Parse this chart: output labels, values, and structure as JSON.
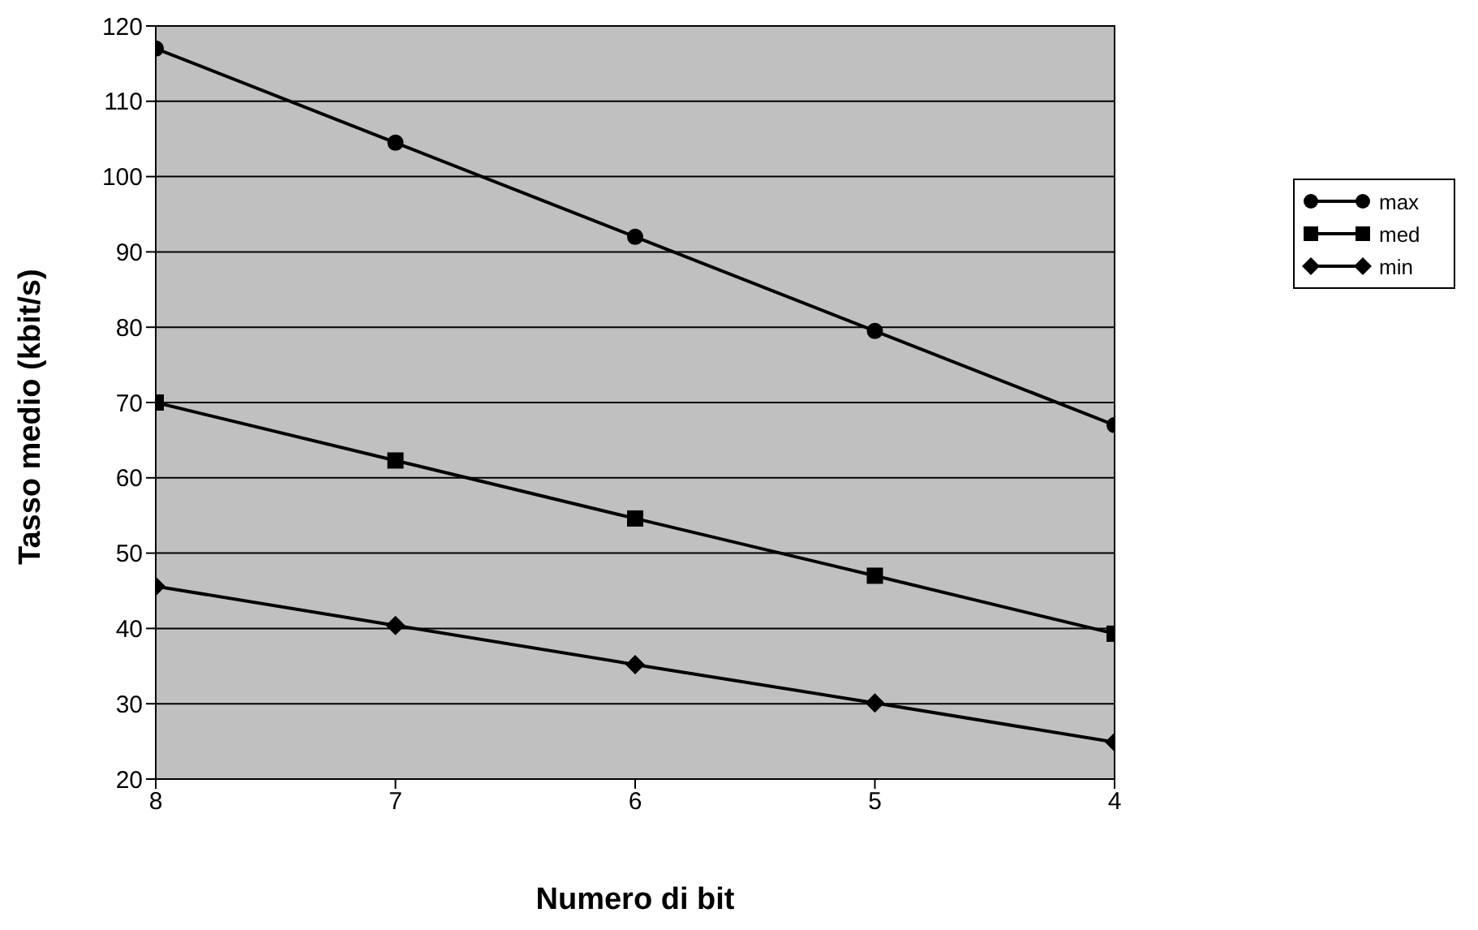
{
  "chart_data": {
    "type": "line",
    "xlabel": "Numero di bit",
    "ylabel": "Tasso medio (kbit/s)",
    "x": [
      8,
      7,
      6,
      5,
      4
    ],
    "series": [
      {
        "name": "max",
        "color": "#000000",
        "marker": "circle",
        "values": [
          117,
          104.5,
          92,
          79.5,
          67
        ]
      },
      {
        "name": "med",
        "color": "#000000",
        "marker": "square",
        "values": [
          70,
          62.3,
          54.6,
          47,
          39.3
        ]
      },
      {
        "name": "min",
        "color": "#000000",
        "marker": "diamond",
        "values": [
          45.6,
          40.4,
          35.2,
          30.1,
          24.9
        ]
      }
    ],
    "xlim": [
      8,
      4
    ],
    "xticks": [
      8,
      7,
      6,
      5,
      4
    ],
    "ylim": [
      20,
      120
    ],
    "yticks": [
      20,
      30,
      40,
      50,
      60,
      70,
      80,
      90,
      100,
      110,
      120
    ],
    "grid": "y",
    "legend": "right",
    "line_style": "solid"
  }
}
